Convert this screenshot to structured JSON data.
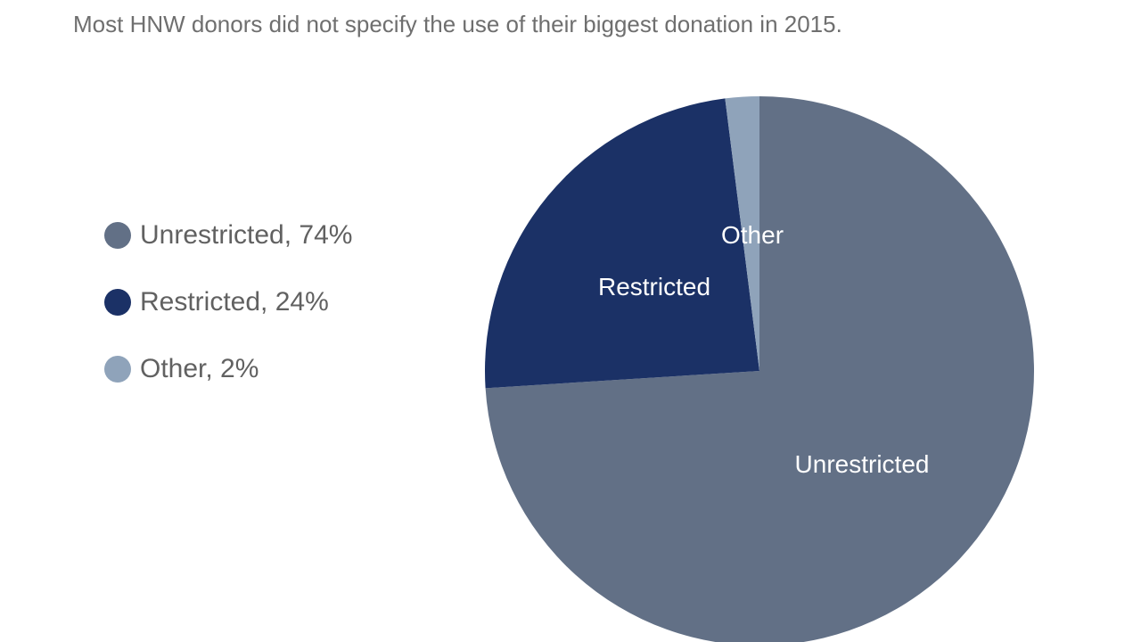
{
  "title": "Most HNW donors did not specify the use of their biggest donation in 2015.",
  "colors": {
    "background": "#ffffff",
    "title_text": "#6f6f6f",
    "legend_text": "#616161",
    "slice_label_text": "#ffffff"
  },
  "chart_data": {
    "type": "pie",
    "title": "Most HNW donors did not specify the use of their biggest donation in 2015.",
    "start_angle_deg": 0,
    "direction": "clockwise",
    "legend_position": "left",
    "slices": [
      {
        "label": "Unrestricted",
        "value": 74,
        "color": "#627086"
      },
      {
        "label": "Restricted",
        "value": 24,
        "color": "#1b3166"
      },
      {
        "label": "Other",
        "value": 2,
        "color": "#8fa3ba"
      }
    ],
    "legend_labels": [
      "Unrestricted, 74%",
      "Restricted, 24%",
      "Other, 2%"
    ]
  }
}
